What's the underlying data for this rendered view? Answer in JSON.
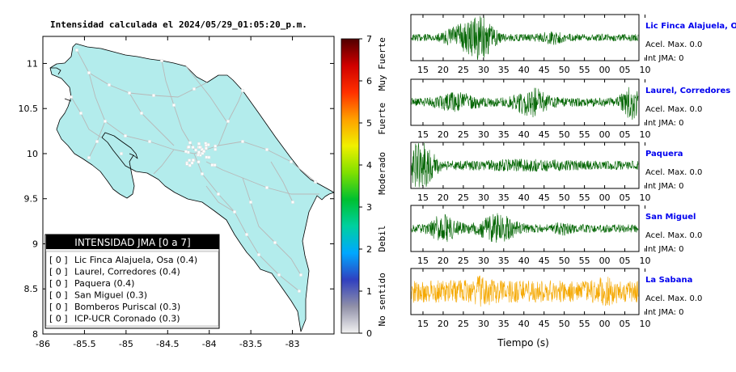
{
  "map": {
    "title": "Intensidad calculada el 2024/05/29_01:05:20_p.m.",
    "x_ticks": [
      "-86",
      "-85.5",
      "-85",
      "-84.5",
      "-84",
      "-83.5",
      "-83"
    ],
    "y_ticks": [
      "11",
      "10.5",
      "10",
      "9.5",
      "9",
      "8.5",
      "8"
    ],
    "colors": {
      "land": "#b3ecec",
      "roads": "#b8b8b8",
      "border": "#000000"
    }
  },
  "legend": {
    "title": "INTENSIDAD JMA [0 a 7]",
    "items": [
      {
        "badge": "[ 0 ]",
        "label": "Lic Finca Alajuela, Osa (0.4)"
      },
      {
        "badge": "[ 0 ]",
        "label": "Laurel, Corredores (0.4)"
      },
      {
        "badge": "[ 0 ]",
        "label": "Paquera (0.4)"
      },
      {
        "badge": "[ 0 ]",
        "label": "San Miguel (0.3)"
      },
      {
        "badge": "[ 0 ]",
        "label": "Bomberos Puriscal (0.3)"
      },
      {
        "badge": "[ 0 ]",
        "label": "ICP-UCR Coronado (0.3)"
      }
    ]
  },
  "colorbar": {
    "ticks": [
      "7",
      "6",
      "5",
      "4",
      "3",
      "2",
      "1",
      "0"
    ],
    "bands": [
      "Muy Fuerte",
      "Fuerte",
      "Moderado",
      "Debil",
      "No sentido"
    ],
    "range": [
      0,
      7
    ],
    "gradient": [
      "#f2f2f2",
      "#9090a8",
      "#3040c0",
      "#00a8ff",
      "#00d0a0",
      "#00c030",
      "#80e000",
      "#f0f000",
      "#ffa000",
      "#ff3000",
      "#d00000",
      "#500000"
    ]
  },
  "traces": {
    "x_tick_labels": [
      "15",
      "20",
      "25",
      "30",
      "35",
      "40",
      "45",
      "50",
      "55",
      "00",
      "05",
      "10"
    ],
    "xlabel": "Tiempo (s)",
    "stations": [
      {
        "name": "Lic Finca Alajuela, Osa",
        "accel": "Acel. Max. 0.0",
        "jma": "Int JMA: 0",
        "color": "#006400"
      },
      {
        "name": "Laurel, Corredores",
        "accel": "Acel. Max. 0.0",
        "jma": "Int JMA: 0",
        "color": "#006400"
      },
      {
        "name": "Paquera",
        "accel": "Acel. Max. 0.0",
        "jma": "Int JMA: 0",
        "color": "#006400"
      },
      {
        "name": "San Miguel",
        "accel": "Acel. Max. 0.0",
        "jma": "Int JMA: 0",
        "color": "#006400"
      },
      {
        "name": "La Sabana",
        "accel": "Acel. Max. 0.0",
        "jma": "Int JMA: 0",
        "color": "#f5a800"
      }
    ]
  },
  "chart_data": [
    {
      "type": "heatmap",
      "title": "Intensidad calculada el 2024/05/29_01:05:20_p.m.",
      "xlim": [
        -86,
        -82.5
      ],
      "ylim": [
        8,
        11.3
      ],
      "colorbar_range": [
        0,
        7
      ],
      "stations": [
        {
          "label": "Lic Finca Alajuela, Osa",
          "intensity_class": 0,
          "intensity": 0.4
        },
        {
          "label": "Laurel, Corredores",
          "intensity_class": 0,
          "intensity": 0.4
        },
        {
          "label": "Paquera",
          "intensity_class": 0,
          "intensity": 0.4
        },
        {
          "label": "San Miguel",
          "intensity_class": 0,
          "intensity": 0.3
        },
        {
          "label": "Bomberos Puriscal",
          "intensity_class": 0,
          "intensity": 0.3
        },
        {
          "label": "ICP-UCR Coronado",
          "intensity_class": 0,
          "intensity": 0.3
        }
      ]
    },
    {
      "type": "line",
      "xlabel": "Tiempo (s)",
      "x_tick_labels": [
        "15",
        "20",
        "25",
        "30",
        "35",
        "40",
        "45",
        "50",
        "55",
        "00",
        "05",
        "10"
      ],
      "series": [
        {
          "name": "Lic Finca Alajuela, Osa",
          "peak_accel": 0.0,
          "jma": 0
        },
        {
          "name": "Laurel, Corredores",
          "peak_accel": 0.0,
          "jma": 0
        },
        {
          "name": "Paquera",
          "peak_accel": 0.0,
          "jma": 0
        },
        {
          "name": "San Miguel",
          "peak_accel": 0.0,
          "jma": 0
        },
        {
          "name": "La Sabana",
          "peak_accel": 0.0,
          "jma": 0
        }
      ]
    }
  ]
}
